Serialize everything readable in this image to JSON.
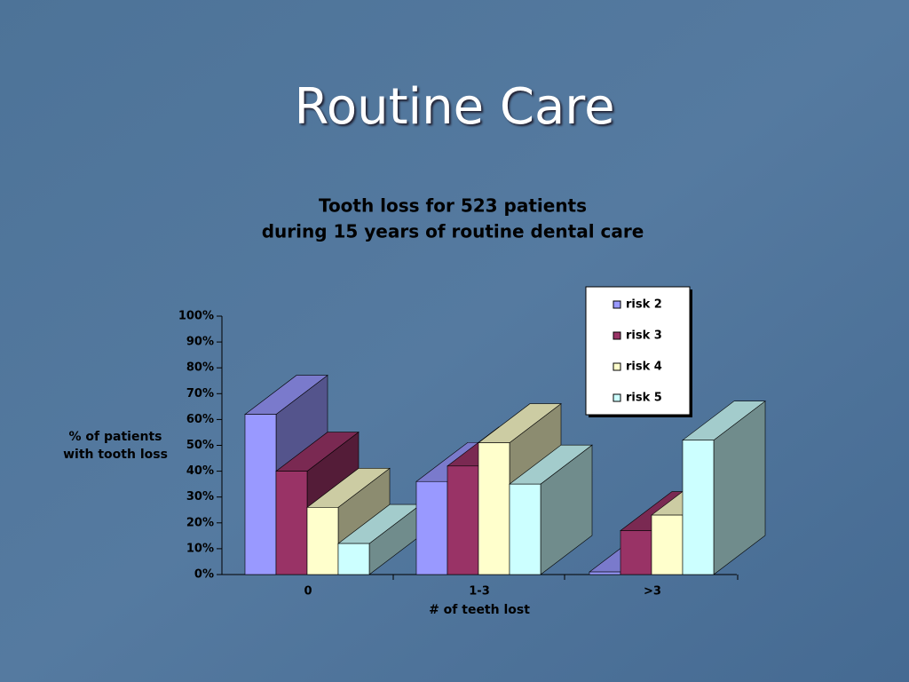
{
  "slide_title": "Routine Care",
  "chart_data": {
    "type": "bar3d",
    "title": [
      "Tooth loss for 523 patients",
      "during 15 years of routine dental care"
    ],
    "ylabel": [
      "% of patients",
      "with tooth loss"
    ],
    "xlabel": "# of teeth lost",
    "categories": [
      "0",
      "1-3",
      ">3"
    ],
    "series": [
      {
        "name": "risk 2",
        "color": "#9999ff",
        "values": [
          62,
          36,
          1
        ]
      },
      {
        "name": "risk 3",
        "color": "#993366",
        "values": [
          40,
          42,
          17
        ]
      },
      {
        "name": "risk 4",
        "color": "#ffffcc",
        "values": [
          26,
          51,
          23
        ]
      },
      {
        "name": "risk 5",
        "color": "#ccffff",
        "values": [
          12,
          35,
          52
        ]
      }
    ],
    "ylim": [
      0,
      100
    ],
    "yticks": [
      {
        "value": 0,
        "label": "0%"
      },
      {
        "value": 10,
        "label": "10%"
      },
      {
        "value": 20,
        "label": "20%"
      },
      {
        "value": 30,
        "label": "30%"
      },
      {
        "value": 40,
        "label": "40%"
      },
      {
        "value": 50,
        "label": "50%"
      },
      {
        "value": 60,
        "label": "60%"
      },
      {
        "value": 70,
        "label": "70%"
      },
      {
        "value": 80,
        "label": "80%"
      },
      {
        "value": 90,
        "label": "90%"
      },
      {
        "value": 100,
        "label": "100%"
      }
    ],
    "legend": "top-right"
  }
}
